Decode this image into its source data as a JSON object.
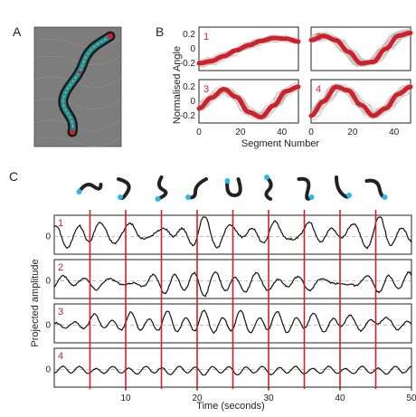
{
  "figure": {
    "panel_a": {
      "letter": "A"
    },
    "panel_b": {
      "letter": "B",
      "ylabel": "Normalised Angle",
      "xlabel": "Segment Number",
      "xticks": [
        "0",
        "20",
        "40"
      ],
      "yticks": [
        "0.2",
        "0",
        "-0.2"
      ],
      "subplots": [
        "1",
        "2",
        "3",
        "4"
      ]
    },
    "panel_c": {
      "letter": "C",
      "ylabel": "Projected amplitude",
      "xlabel": "Time (seconds)",
      "xticks": [
        "10",
        "20",
        "30",
        "40",
        "50"
      ],
      "zero_label": "0",
      "rows": [
        "1",
        "2",
        "3",
        "4"
      ]
    }
  },
  "colors": {
    "accent_red": "#d0212a",
    "trace_gray": "#b8b8b8",
    "marker_cyan": "#2bb8e6",
    "worm_teal": "#1f8a9a"
  },
  "chart_data": [
    {
      "type": "line",
      "panel": "B",
      "xlabel": "Segment Number",
      "ylabel": "Normalised Angle",
      "xlim": [
        0,
        48
      ],
      "ylim": [
        -0.3,
        0.3
      ],
      "grid": false,
      "series": [
        {
          "name": "1",
          "x": [
            0,
            6,
            12,
            18,
            24,
            30,
            36,
            42,
            48
          ],
          "values": [
            -0.2,
            -0.17,
            -0.1,
            -0.02,
            0.05,
            0.11,
            0.15,
            0.14,
            0.1
          ]
        },
        {
          "name": "2",
          "x": [
            0,
            6,
            12,
            18,
            24,
            30,
            36,
            42,
            48
          ],
          "values": [
            0.12,
            0.18,
            0.12,
            -0.04,
            -0.2,
            -0.18,
            0.0,
            0.18,
            0.22
          ]
        },
        {
          "name": "3",
          "x": [
            0,
            6,
            12,
            18,
            24,
            30,
            36,
            42,
            48
          ],
          "values": [
            -0.1,
            0.05,
            0.17,
            0.06,
            -0.15,
            -0.22,
            -0.06,
            0.14,
            0.2
          ]
        },
        {
          "name": "4",
          "x": [
            0,
            6,
            12,
            18,
            24,
            30,
            36,
            42,
            48
          ],
          "values": [
            -0.2,
            0.0,
            0.2,
            0.15,
            -0.05,
            -0.2,
            -0.1,
            0.1,
            0.2
          ]
        }
      ]
    },
    {
      "type": "line",
      "panel": "C",
      "xlabel": "Time (seconds)",
      "ylabel": "Projected amplitude",
      "xlim": [
        0,
        50
      ],
      "event_times": [
        5,
        10,
        15,
        20,
        25,
        30,
        35,
        40,
        45
      ],
      "series": [
        {
          "name": "1",
          "amplitude": 1.0
        },
        {
          "name": "2",
          "amplitude": 0.85
        },
        {
          "name": "3",
          "amplitude": 0.7
        },
        {
          "name": "4",
          "amplitude": 0.3
        }
      ]
    }
  ]
}
